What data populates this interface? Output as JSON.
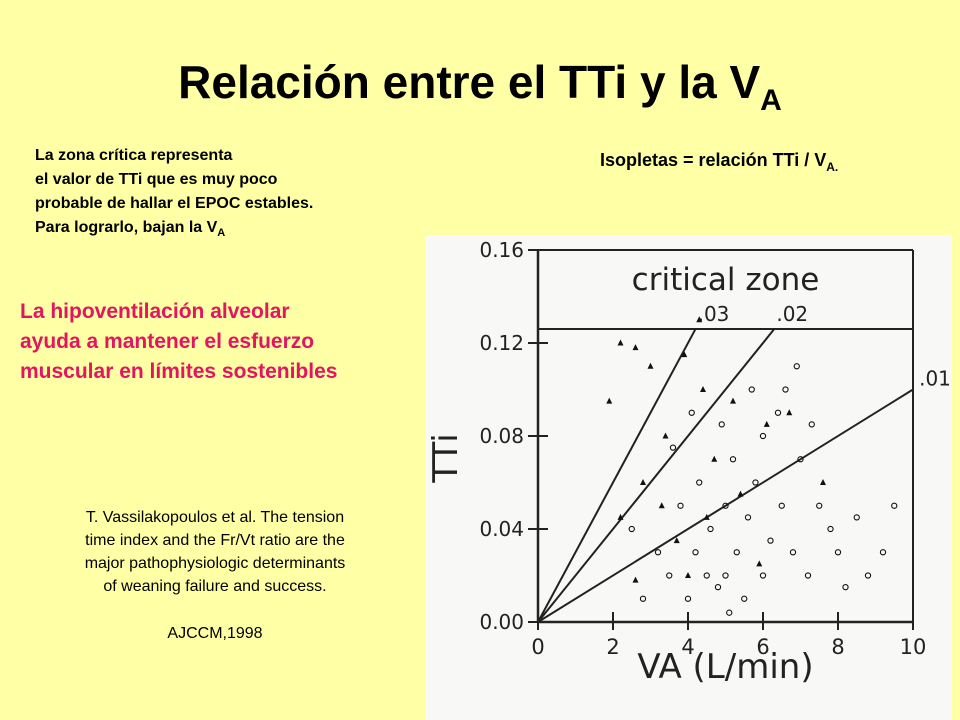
{
  "title": {
    "text": "Relación entre el TTi y la V",
    "subscript": "A"
  },
  "note": {
    "lines": [
      "La zona crítica representa",
      "el valor de TTi  que es muy poco",
      "probable de hallar el  EPOC estables.",
      "Para lograrlo, bajan la V"
    ],
    "subscript": "A"
  },
  "isopleth_note": {
    "text": "Isopletas = relación TTi / V",
    "subscript": "A."
  },
  "highlight": [
    "La hipoventilación alveolar",
    "ayuda a mantener el esfuerzo",
    "muscular en límites sostenibles"
  ],
  "citation": {
    "lines": [
      "T. Vassilakopoulos et al. The tension",
      "time index and the Fr/Vt ratio are the",
      "major pathophysiologic determinants",
      "of weaning failure and success."
    ],
    "journal": "AJCCM,1998"
  },
  "chart_data": {
    "type": "scatter",
    "x_label": "VA (L/min)",
    "y_label": "TTi",
    "xlim": [
      0,
      10
    ],
    "ylim": [
      0,
      0.16
    ],
    "xticks": [
      0,
      2,
      4,
      6,
      8,
      10
    ],
    "yticks": [
      {
        "value": 0,
        "label": "0.00"
      },
      0.04,
      0.08,
      0.12,
      0.16
    ],
    "critical_zone": {
      "label": "critical zone",
      "value": 0.126
    },
    "isopleths": [
      {
        "value": 0.03,
        "label": ".03"
      },
      {
        "value": 0.02,
        "label": ".02"
      },
      {
        "value": 0.01,
        "label": ".01"
      }
    ],
    "series": [
      {
        "marker": "triangle",
        "color": "#111111",
        "x": [
          2.2,
          2.6,
          3.0,
          1.9,
          3.4,
          3.9,
          4.4,
          2.8,
          3.3,
          4.7,
          5.4,
          6.1,
          6.7,
          4.5,
          3.7,
          5.9,
          4.0,
          2.2,
          7.6,
          5.2,
          4.3,
          2.6
        ],
        "values": [
          0.12,
          0.118,
          0.11,
          0.095,
          0.08,
          0.115,
          0.1,
          0.06,
          0.05,
          0.07,
          0.055,
          0.085,
          0.09,
          0.045,
          0.035,
          0.025,
          0.02,
          0.045,
          0.06,
          0.095,
          0.13,
          0.018
        ]
      },
      {
        "marker": "circle",
        "color": "#111111",
        "x": [
          3.2,
          3.5,
          3.8,
          4.0,
          4.2,
          4.3,
          4.5,
          4.6,
          4.8,
          5.0,
          5.0,
          5.2,
          5.3,
          5.5,
          5.6,
          5.8,
          6.0,
          6.0,
          6.2,
          6.4,
          6.5,
          6.8,
          7.0,
          7.2,
          7.5,
          7.8,
          8.0,
          8.2,
          8.5,
          8.8,
          9.2,
          9.5,
          5.7,
          6.6,
          4.9,
          3.6,
          2.8,
          2.5,
          7.3,
          6.9,
          5.1,
          4.1
        ],
        "values": [
          0.03,
          0.02,
          0.05,
          0.01,
          0.03,
          0.06,
          0.02,
          0.04,
          0.015,
          0.05,
          0.02,
          0.07,
          0.03,
          0.01,
          0.045,
          0.06,
          0.02,
          0.08,
          0.035,
          0.09,
          0.05,
          0.03,
          0.07,
          0.02,
          0.05,
          0.04,
          0.03,
          0.015,
          0.045,
          0.02,
          0.03,
          0.05,
          0.1,
          0.1,
          0.085,
          0.075,
          0.01,
          0.04,
          0.085,
          0.11,
          0.004,
          0.09
        ]
      }
    ]
  }
}
